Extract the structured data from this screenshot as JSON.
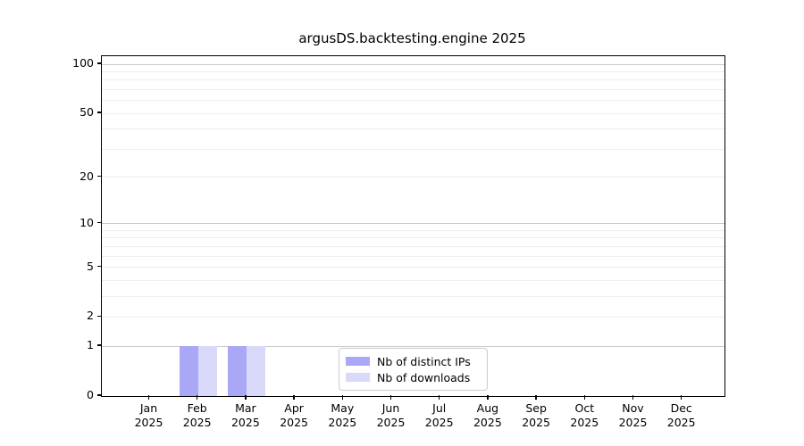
{
  "title": "argusDS.backtesting.engine 2025",
  "chart_data": {
    "type": "bar",
    "title": "argusDS.backtesting.engine 2025",
    "categories": [
      "Jan",
      "Feb",
      "Mar",
      "Apr",
      "May",
      "Jun",
      "Jul",
      "Aug",
      "Sep",
      "Oct",
      "Nov",
      "Dec"
    ],
    "x_year": "2025",
    "series": [
      {
        "name": "Nb of distinct IPs",
        "color": "#a8a8f6",
        "values": [
          0,
          1,
          1,
          0,
          0,
          0,
          0,
          0,
          0,
          0,
          0,
          0
        ]
      },
      {
        "name": "Nb of downloads",
        "color": "#d9d9f9",
        "values": [
          0,
          1,
          1,
          0,
          0,
          0,
          0,
          0,
          0,
          0,
          0,
          0
        ]
      }
    ],
    "y_scale": "log1p",
    "y_ticks": [
      0,
      1,
      2,
      5,
      10,
      20,
      50,
      100
    ],
    "y_grid_major": [
      1,
      10,
      100
    ],
    "y_grid_minor": [
      2,
      3,
      4,
      5,
      6,
      7,
      8,
      9,
      20,
      30,
      40,
      50,
      60,
      70,
      80,
      90
    ],
    "ylim": [
      0,
      112
    ],
    "xlabel": "",
    "ylabel": "",
    "grid": true,
    "legend_position": "lower center"
  },
  "colors": {
    "grid_major": "#c9c9c9",
    "grid_minor": "#ededed",
    "spine": "#000000",
    "background": "#ffffff"
  }
}
